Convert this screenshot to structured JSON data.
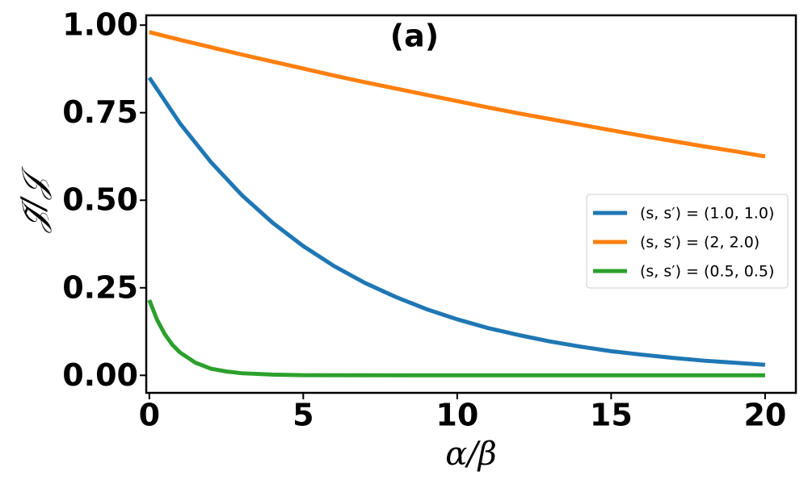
{
  "chart_data": {
    "type": "line",
    "title": "(a)",
    "x_label": "α/β",
    "y_label": "𝒥̃/𝒥",
    "xlim": [
      -0.1,
      21
    ],
    "ylim": [
      -0.05,
      1.028
    ],
    "xticks": [
      0,
      5,
      10,
      15,
      20
    ],
    "yticks": [
      {
        "value": 0,
        "label": "0.00"
      },
      {
        "value": 0.25,
        "label": "0.25"
      },
      {
        "value": 0.5,
        "label": "0.50"
      },
      {
        "value": 0.75,
        "label": "0.75"
      },
      {
        "value": 1,
        "label": "1.00"
      }
    ],
    "legend_position": "right",
    "series": [
      {
        "name": "(s, s′) = (1.0, 1.0)",
        "color": "#1f77b4",
        "x": [
          0,
          1,
          2,
          3,
          4,
          5,
          6,
          7,
          8,
          9,
          10,
          11,
          12,
          13,
          14,
          15,
          16,
          17,
          18,
          19,
          20
        ],
        "values": [
          0.85,
          0.719,
          0.609,
          0.515,
          0.436,
          0.369,
          0.312,
          0.264,
          0.224,
          0.189,
          0.16,
          0.135,
          0.115,
          0.097,
          0.082,
          0.069,
          0.059,
          0.05,
          0.042,
          0.036,
          0.03
        ]
      },
      {
        "name": "(s, s′) = (2, 2.0)",
        "color": "#ff7f0e",
        "x": [
          0,
          1,
          2,
          3,
          4,
          5,
          6,
          7,
          8,
          9,
          10,
          11,
          12,
          13,
          14,
          15,
          16,
          17,
          18,
          19,
          20
        ],
        "values": [
          0.98,
          0.958,
          0.937,
          0.916,
          0.896,
          0.876,
          0.856,
          0.837,
          0.819,
          0.801,
          0.783,
          0.765,
          0.748,
          0.732,
          0.716,
          0.7,
          0.684,
          0.669,
          0.654,
          0.64,
          0.625
        ]
      },
      {
        "name": "(s, s′) = (0.5, 0.5)",
        "color": "#2ca02c",
        "x": [
          0,
          0.25,
          0.5,
          0.75,
          1,
          1.5,
          2,
          2.5,
          3,
          4,
          5,
          10,
          15,
          20
        ],
        "values": [
          0.215,
          0.159,
          0.118,
          0.087,
          0.065,
          0.036,
          0.019,
          0.011,
          0.006,
          0.002,
          0.0005,
          0,
          0,
          0
        ]
      }
    ]
  }
}
